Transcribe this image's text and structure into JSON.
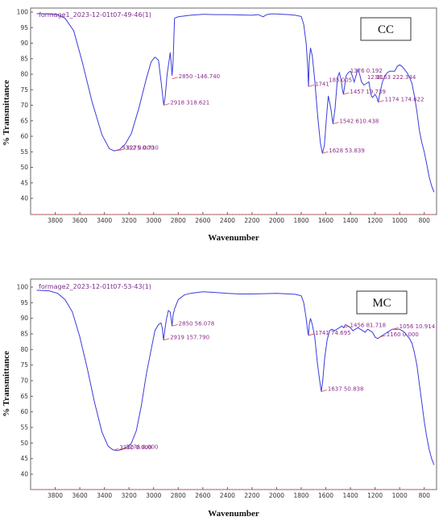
{
  "chart_data": [
    {
      "type": "line",
      "panel_label": "CC",
      "file_label": "formage1_2023-12-01t07-49-46(1)",
      "xlabel": "Wavenumber",
      "ylabel": "% Transmittance",
      "x_reversed": true,
      "xlim": [
        4000,
        700
      ],
      "ylim": [
        40,
        100
      ],
      "xticks": [
        3800,
        3600,
        3400,
        3200,
        3000,
        2800,
        2600,
        2400,
        2200,
        2000,
        1800,
        1600,
        1400,
        1200,
        1000,
        800
      ],
      "yticks": [
        100,
        95,
        90,
        85,
        80,
        75,
        70,
        65,
        60,
        55,
        50,
        45,
        40
      ],
      "grid": false,
      "series": [
        {
          "color": "#3b3bdc",
          "x": [
            3950,
            3850,
            3780,
            3720,
            3650,
            3580,
            3500,
            3420,
            3360,
            3320,
            3280,
            3230,
            3180,
            3120,
            3060,
            3020,
            2990,
            2960,
            2935,
            2918,
            2905,
            2890,
            2870,
            2865,
            2858,
            2850,
            2842,
            2830,
            2800,
            2700,
            2600,
            2500,
            2400,
            2300,
            2200,
            2150,
            2110,
            2080,
            2050,
            2000,
            1950,
            1900,
            1850,
            1800,
            1780,
            1760,
            1748,
            1741,
            1735,
            1725,
            1710,
            1690,
            1665,
            1645,
            1628,
            1612,
            1595,
            1580,
            1560,
            1542,
            1525,
            1505,
            1490,
            1475,
            1465,
            1457,
            1448,
            1435,
            1418,
            1400,
            1385,
            1370,
            1355,
            1340,
            1325,
            1310,
            1290,
            1270,
            1250,
            1240,
            1230,
            1220,
            1200,
            1185,
            1174,
            1160,
            1140,
            1120,
            1100,
            1080,
            1060,
            1040,
            1020,
            1000,
            980,
            960,
            940,
            920,
            900,
            880,
            860,
            840,
            820,
            800,
            780,
            760,
            740,
            720
          ],
          "y": [
            99.5,
            99.4,
            99.2,
            98.0,
            94.0,
            84.0,
            71.0,
            60.5,
            56.0,
            55.3,
            55.6,
            57.5,
            61.0,
            69.0,
            78.5,
            84.0,
            85.5,
            84.5,
            76.0,
            70.0,
            73.0,
            80.0,
            85.5,
            87.0,
            84.0,
            79.5,
            84.0,
            98.0,
            98.5,
            99.0,
            99.3,
            99.2,
            99.2,
            99.1,
            99.0,
            99.2,
            98.5,
            99.2,
            99.4,
            99.4,
            99.3,
            99.2,
            99.0,
            98.6,
            96.0,
            90.0,
            83.0,
            76.0,
            84.0,
            88.5,
            86.0,
            78.0,
            66.0,
            58.0,
            54.5,
            57.0,
            66.0,
            73.0,
            69.0,
            64.0,
            69.0,
            79.0,
            80.5,
            78.0,
            75.0,
            73.5,
            76.0,
            79.5,
            80.5,
            81.0,
            79.5,
            77.5,
            79.5,
            81.5,
            80.0,
            77.5,
            76.5,
            77.0,
            77.5,
            75.0,
            73.0,
            72.5,
            73.5,
            72.5,
            71.0,
            74.0,
            77.5,
            79.5,
            80.5,
            81.0,
            81.0,
            81.0,
            82.5,
            83.0,
            82.5,
            81.5,
            80.5,
            79.0,
            77.0,
            73.0,
            68.0,
            62.0,
            58.0,
            55.0,
            51.0,
            47.0,
            44.0,
            42.0
          ]
        }
      ],
      "peaks": [
        {
          "x": 2850,
          "y": 78.5,
          "label": "2850  -146.740"
        },
        {
          "x": 2918,
          "y": 70.0,
          "label": "2918  318.621"
        },
        {
          "x": 3312,
          "y": 55.4,
          "label": "3312  0.000"
        },
        {
          "x": 3275,
          "y": 55.5,
          "label": "3275  0.730"
        },
        {
          "x": 1741,
          "y": 76.0,
          "label": "1741"
        },
        {
          "x": 1628,
          "y": 54.5,
          "label": "1628  53.839"
        },
        {
          "x": 1542,
          "y": 64.0,
          "label": "1542  610.438"
        },
        {
          "x": 1457,
          "y": 73.5,
          "label": "1457  19.739"
        },
        {
          "x": 1174,
          "y": 71.0,
          "label": "1174  174.622"
        }
      ],
      "partial_labels": [
        "185.005",
        "1376  0.192",
        "1238",
        "1163  222.344"
      ]
    },
    {
      "type": "line",
      "panel_label": "MC",
      "file_label": "formage2_2023-12-01t07-53-43(1)",
      "xlabel": "Wavenumber",
      "ylabel": "% Transmittance",
      "x_reversed": true,
      "xlim": [
        4000,
        700
      ],
      "ylim": [
        40,
        100
      ],
      "xticks": [
        3800,
        3600,
        3400,
        3200,
        3000,
        2800,
        2600,
        2400,
        2200,
        2000,
        1800,
        1600,
        1400,
        1200,
        1000,
        800
      ],
      "yticks": [
        100,
        95,
        90,
        85,
        80,
        75,
        70,
        65,
        60,
        55,
        50,
        45,
        40
      ],
      "grid": false,
      "series": [
        {
          "color": "#3b3bdc",
          "x": [
            3950,
            3850,
            3780,
            3720,
            3660,
            3600,
            3540,
            3480,
            3420,
            3370,
            3330,
            3300,
            3260,
            3220,
            3180,
            3140,
            3100,
            3060,
            3020,
            2990,
            2960,
            2940,
            2930,
            2919,
            2910,
            2895,
            2880,
            2865,
            2858,
            2850,
            2842,
            2830,
            2800,
            2750,
            2700,
            2600,
            2500,
            2400,
            2300,
            2200,
            2100,
            2000,
            1900,
            1850,
            1800,
            1780,
            1760,
            1748,
            1741,
            1735,
            1725,
            1710,
            1690,
            1670,
            1650,
            1637,
            1625,
            1610,
            1590,
            1570,
            1550,
            1530,
            1510,
            1490,
            1470,
            1456,
            1440,
            1420,
            1400,
            1380,
            1360,
            1340,
            1320,
            1300,
            1280,
            1260,
            1240,
            1220,
            1200,
            1180,
            1160,
            1140,
            1120,
            1100,
            1080,
            1060,
            1040,
            1020,
            1000,
            980,
            960,
            940,
            920,
            900,
            880,
            860,
            840,
            820,
            800,
            780,
            760,
            740,
            720
          ],
          "y": [
            99.0,
            98.8,
            98.0,
            96.0,
            92.0,
            84.0,
            74.0,
            63.0,
            53.5,
            49.0,
            47.8,
            47.6,
            47.9,
            48.5,
            50.0,
            54.0,
            62.0,
            72.0,
            80.0,
            86.0,
            88.0,
            88.5,
            87.0,
            83.0,
            86.0,
            90.0,
            92.5,
            92.0,
            90.0,
            87.5,
            91.0,
            93.0,
            96.0,
            97.5,
            98.0,
            98.5,
            98.3,
            98.0,
            97.8,
            97.8,
            97.9,
            98.0,
            97.8,
            97.7,
            97.2,
            95.0,
            90.0,
            86.0,
            84.5,
            88.0,
            90.0,
            88.0,
            84.0,
            76.0,
            70.0,
            66.5,
            70.0,
            77.0,
            83.0,
            86.0,
            86.5,
            86.0,
            86.5,
            87.0,
            87.5,
            87.0,
            88.0,
            87.5,
            87.0,
            86.0,
            86.5,
            87.0,
            86.5,
            86.0,
            85.5,
            86.5,
            86.0,
            85.5,
            84.0,
            83.5,
            84.0,
            84.5,
            85.0,
            85.5,
            86.0,
            86.5,
            86.5,
            86.5,
            86.5,
            86.0,
            85.5,
            84.5,
            83.5,
            82.0,
            79.0,
            75.0,
            69.0,
            63.0,
            57.0,
            52.0,
            48.0,
            45.0,
            43.0
          ]
        }
      ],
      "peaks": [
        {
          "x": 2850,
          "y": 87.5,
          "label": "2850  56.078"
        },
        {
          "x": 2919,
          "y": 83.0,
          "label": "2919  157.790"
        },
        {
          "x": 3330,
          "y": 47.7,
          "label": "3330  0.000"
        },
        {
          "x": 3278,
          "y": 47.9,
          "label": "3278  0.000"
        },
        {
          "x": 1741,
          "y": 84.5,
          "label": "1741  74.695"
        },
        {
          "x": 1637,
          "y": 66.5,
          "label": "1637  50.838"
        },
        {
          "x": 1456,
          "y": 87.0,
          "label": "1456  81.718"
        },
        {
          "x": 1160,
          "y": 84.0,
          "label": "1160  0.000"
        },
        {
          "x": 1056,
          "y": 86.5,
          "label": "1056  10.914"
        }
      ]
    }
  ]
}
